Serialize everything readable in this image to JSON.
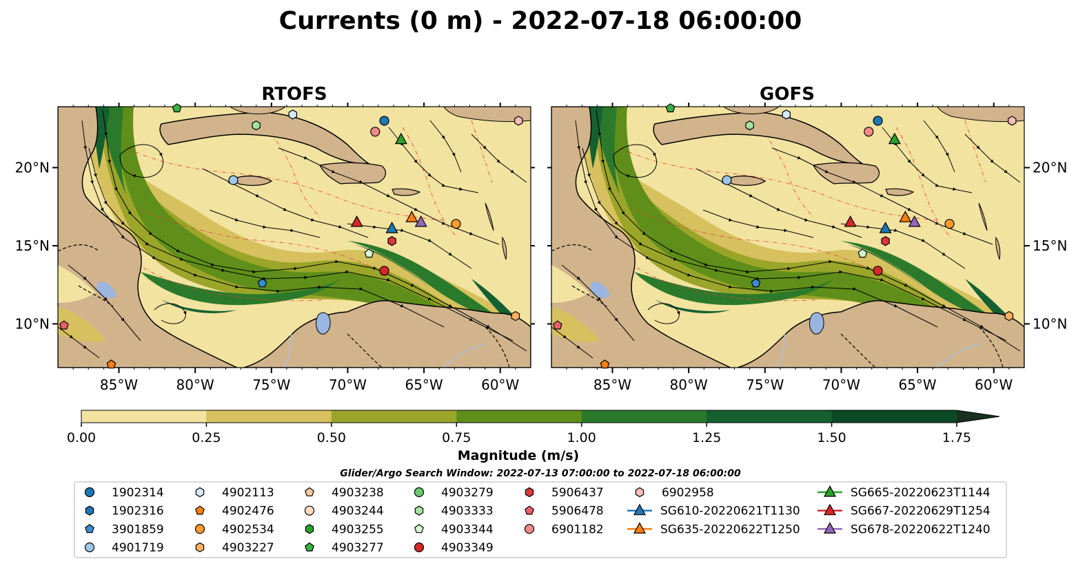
{
  "title": "Currents (0 m) - 2022-07-18 06:00:00",
  "panels": [
    {
      "name": "RTOFS",
      "map_key": "rtofs"
    },
    {
      "name": "GOFS",
      "map_key": "gofs"
    }
  ],
  "map_extent": {
    "lon": [
      -89,
      -58
    ],
    "lat": [
      7.2,
      23.9
    ]
  },
  "lon_ticks": [
    {
      "value": -85,
      "label": "85°W"
    },
    {
      "value": -80,
      "label": "80°W"
    },
    {
      "value": -75,
      "label": "75°W"
    },
    {
      "value": -70,
      "label": "70°W"
    },
    {
      "value": -65,
      "label": "65°W"
    },
    {
      "value": -60,
      "label": "60°W"
    }
  ],
  "lat_ticks": [
    {
      "value": 20,
      "label": "20°N"
    },
    {
      "value": 15,
      "label": "15°N"
    },
    {
      "value": 10,
      "label": "10°N"
    }
  ],
  "colorbar": {
    "label": "Magnitude (m/s)",
    "ticks": [
      "0.00",
      "0.25",
      "0.50",
      "0.75",
      "1.00",
      "1.25",
      "1.50",
      "1.75"
    ],
    "colors": [
      "#f2e3a0",
      "#d6c15e",
      "#9aa52a",
      "#5f8f1a",
      "#2b7a2b",
      "#156031",
      "#0c4a26",
      "#18301f"
    ],
    "extend": "max"
  },
  "colors": {
    "land": "#d2b48c",
    "lake": "#9ab5e0",
    "river": "#a9bedc",
    "water_low": "#f2e3a0",
    "stream": "#000000",
    "depth_contour": "#e33a2c"
  },
  "search_window": "Glider/Argo Search Window: 2022-07-13 07:00:00 to 2022-07-18 06:00:00",
  "legend": [
    {
      "label": "1902314",
      "shape": "circle",
      "color": "#1f77b4"
    },
    {
      "label": "1902316",
      "shape": "hexagon",
      "color": "#1f77b4"
    },
    {
      "label": "3901859",
      "shape": "pentagon",
      "color": "#3a8bd0"
    },
    {
      "label": "4901719",
      "shape": "circle",
      "color": "#9ec5ea"
    },
    {
      "label": "4902113",
      "shape": "hexagon",
      "color": "#d6e8fa"
    },
    {
      "label": "4902476",
      "shape": "pentagon",
      "color": "#ff7f0e"
    },
    {
      "label": "4902534",
      "shape": "circle",
      "color": "#ff9a2e"
    },
    {
      "label": "4903227",
      "shape": "hexagon",
      "color": "#ffb061"
    },
    {
      "label": "4903238",
      "shape": "pentagon",
      "color": "#ffc99a"
    },
    {
      "label": "4903244",
      "shape": "circle",
      "color": "#ffdcc0"
    },
    {
      "label": "4903255",
      "shape": "hexagon",
      "color": "#2ca02c"
    },
    {
      "label": "4903277",
      "shape": "pentagon",
      "color": "#3cb043"
    },
    {
      "label": "4903279",
      "shape": "circle",
      "color": "#6cc86c"
    },
    {
      "label": "4903333",
      "shape": "hexagon",
      "color": "#a6e3a1"
    },
    {
      "label": "4903344",
      "shape": "pentagon",
      "color": "#d4f7d0"
    },
    {
      "label": "4903349",
      "shape": "circle",
      "color": "#d62728"
    },
    {
      "label": "5906437",
      "shape": "hexagon",
      "color": "#d9383a"
    },
    {
      "label": "5906478",
      "shape": "pentagon",
      "color": "#ea5f6c"
    },
    {
      "label": "6901182",
      "shape": "circle",
      "color": "#f08a8a"
    },
    {
      "label": "6902958",
      "shape": "hexagon",
      "color": "#f7bcbc"
    },
    {
      "label": "SG610-20220621T1130",
      "shape": "triangle",
      "color": "#1f77b4",
      "line": true
    },
    {
      "label": "SG635-20220622T1250",
      "shape": "triangle",
      "color": "#ff7f0e",
      "line": true
    },
    {
      "label": "SG665-20220623T1144",
      "shape": "triangle",
      "color": "#2ca02c",
      "line": true
    },
    {
      "label": "SG667-20220629T1254",
      "shape": "triangle",
      "color": "#d62728",
      "line": true
    },
    {
      "label": "SG678-20220622T1240",
      "shape": "triangle",
      "color": "#9467bd",
      "line": true
    }
  ],
  "markers": {
    "rtofs": [
      {
        "id": "1902314",
        "lon": -67.6,
        "lat": 23.0
      },
      {
        "id": "4902113",
        "lon": -73.6,
        "lat": 23.4
      },
      {
        "id": "4903277",
        "lon": -81.2,
        "lat": 23.8
      },
      {
        "id": "4903333",
        "lon": -76.0,
        "lat": 22.7
      },
      {
        "id": "6901182",
        "lon": -68.2,
        "lat": 22.3
      },
      {
        "id": "SG665-20220623T1144",
        "lon": -66.5,
        "lat": 21.8
      },
      {
        "id": "6902958",
        "lon": -58.8,
        "lat": 23.0
      },
      {
        "id": "4901719",
        "lon": -77.5,
        "lat": 19.2
      },
      {
        "id": "SG667-20220629T1254",
        "lon": -69.4,
        "lat": 16.5
      },
      {
        "id": "SG610-20220621T1130",
        "lon": -67.1,
        "lat": 16.1
      },
      {
        "id": "SG635-20220622T1250",
        "lon": -65.8,
        "lat": 16.8
      },
      {
        "id": "SG678-20220622T1240",
        "lon": -65.2,
        "lat": 16.5
      },
      {
        "id": "4902534",
        "lon": -62.9,
        "lat": 16.4
      },
      {
        "id": "5906437",
        "lon": -67.1,
        "lat": 15.3
      },
      {
        "id": "4903344",
        "lon": -68.6,
        "lat": 14.5
      },
      {
        "id": "4903349",
        "lon": -67.6,
        "lat": 13.4
      },
      {
        "id": "3901859",
        "lon": -75.6,
        "lat": 12.6
      },
      {
        "id": "5906478",
        "lon": -88.6,
        "lat": 9.9
      },
      {
        "id": "4903227",
        "lon": -59.0,
        "lat": 10.5
      },
      {
        "id": "4902476",
        "lon": -85.5,
        "lat": 7.4
      }
    ],
    "gofs": [
      {
        "id": "1902314",
        "lon": -67.6,
        "lat": 23.0
      },
      {
        "id": "4902113",
        "lon": -73.6,
        "lat": 23.4
      },
      {
        "id": "4903277",
        "lon": -81.2,
        "lat": 23.8
      },
      {
        "id": "4903333",
        "lon": -76.0,
        "lat": 22.7
      },
      {
        "id": "6901182",
        "lon": -68.2,
        "lat": 22.3
      },
      {
        "id": "SG665-20220623T1144",
        "lon": -66.5,
        "lat": 21.8
      },
      {
        "id": "6902958",
        "lon": -58.8,
        "lat": 23.0
      },
      {
        "id": "4901719",
        "lon": -77.5,
        "lat": 19.2
      },
      {
        "id": "SG667-20220629T1254",
        "lon": -69.4,
        "lat": 16.5
      },
      {
        "id": "SG610-20220621T1130",
        "lon": -67.1,
        "lat": 16.1
      },
      {
        "id": "SG635-20220622T1250",
        "lon": -65.8,
        "lat": 16.8
      },
      {
        "id": "SG678-20220622T1240",
        "lon": -65.2,
        "lat": 16.5
      },
      {
        "id": "4902534",
        "lon": -62.9,
        "lat": 16.4
      },
      {
        "id": "5906437",
        "lon": -67.1,
        "lat": 15.3
      },
      {
        "id": "4903344",
        "lon": -68.6,
        "lat": 14.5
      },
      {
        "id": "4903349",
        "lon": -67.6,
        "lat": 13.4
      },
      {
        "id": "3901859",
        "lon": -75.6,
        "lat": 12.6
      },
      {
        "id": "5906478",
        "lon": -88.6,
        "lat": 9.9
      },
      {
        "id": "4903227",
        "lon": -59.0,
        "lat": 10.5
      },
      {
        "id": "4902476",
        "lon": -85.5,
        "lat": 7.4
      }
    ]
  }
}
